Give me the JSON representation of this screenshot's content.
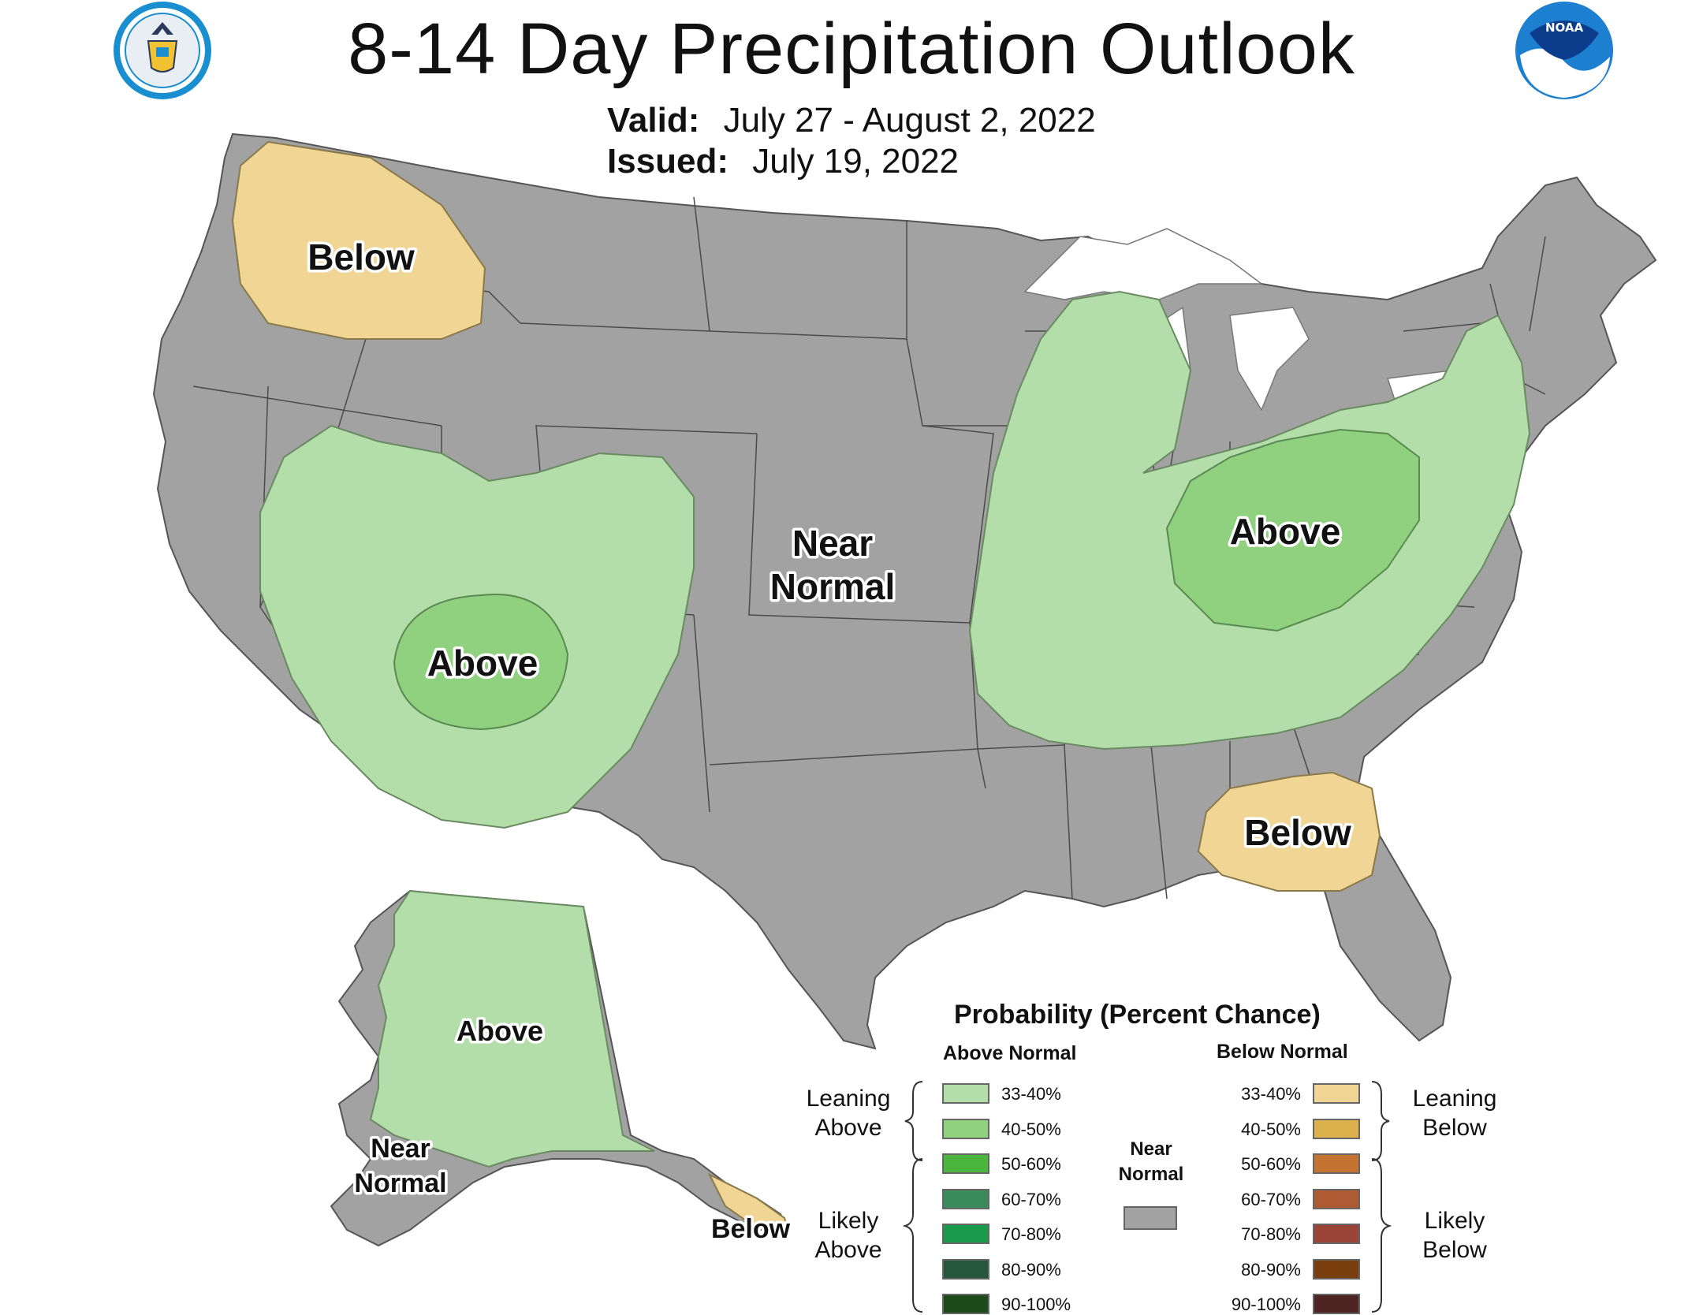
{
  "header": {
    "title": "8-14 Day Precipitation Outlook",
    "valid_label": "Valid:",
    "valid_value": "July 27 - August 2, 2022",
    "issued_label": "Issued:",
    "issued_value": "July 19, 2022"
  },
  "logos": {
    "left": "doc-seal-logo",
    "right": "noaa-logo",
    "right_text": "NOAA"
  },
  "colors": {
    "background_land": "#a2a2a2",
    "state_border": "#4a4a4a",
    "leaning_above": "#b3deaa",
    "above_40_50": "#8fd17e",
    "leaning_below": "#f0d594",
    "water": "#ffffff"
  },
  "map_labels": {
    "nw_below": "Below",
    "sw_above": "Above",
    "near_normal_1": "Near",
    "near_normal_2": "Normal",
    "ohio_above": "Above",
    "se_below": "Below",
    "alaska_above": "Above",
    "alaska_near_1": "Near",
    "alaska_near_2": "Normal",
    "alaska_below": "Below"
  },
  "legend": {
    "title": "Probability (Percent Chance)",
    "above_header": "Above Normal",
    "below_header": "Below Normal",
    "leaning_above": [
      "Leaning",
      "Above"
    ],
    "likely_above": [
      "Likely",
      "Above"
    ],
    "leaning_below": [
      "Leaning",
      "Below"
    ],
    "likely_below": [
      "Likely",
      "Below"
    ],
    "near_normal": [
      "Near",
      "Normal"
    ],
    "near_normal_color": "#a2a2a2",
    "above_bins": [
      {
        "label": "33-40%",
        "color": "#b3deaa"
      },
      {
        "label": "40-50%",
        "color": "#8fd17e"
      },
      {
        "label": "50-60%",
        "color": "#4cb53e"
      },
      {
        "label": "60-70%",
        "color": "#3a8a5c"
      },
      {
        "label": "70-80%",
        "color": "#1a9a4a"
      },
      {
        "label": "80-90%",
        "color": "#27573a"
      },
      {
        "label": "90-100%",
        "color": "#1c4a18"
      }
    ],
    "below_bins": [
      {
        "label": "33-40%",
        "color": "#f0d594"
      },
      {
        "label": "40-50%",
        "color": "#ddb04e"
      },
      {
        "label": "50-60%",
        "color": "#c57330"
      },
      {
        "label": "60-70%",
        "color": "#ae5a33"
      },
      {
        "label": "70-80%",
        "color": "#9a4337"
      },
      {
        "label": "80-90%",
        "color": "#7a3d0c"
      },
      {
        "label": "90-100%",
        "color": "#4e2522"
      }
    ]
  }
}
